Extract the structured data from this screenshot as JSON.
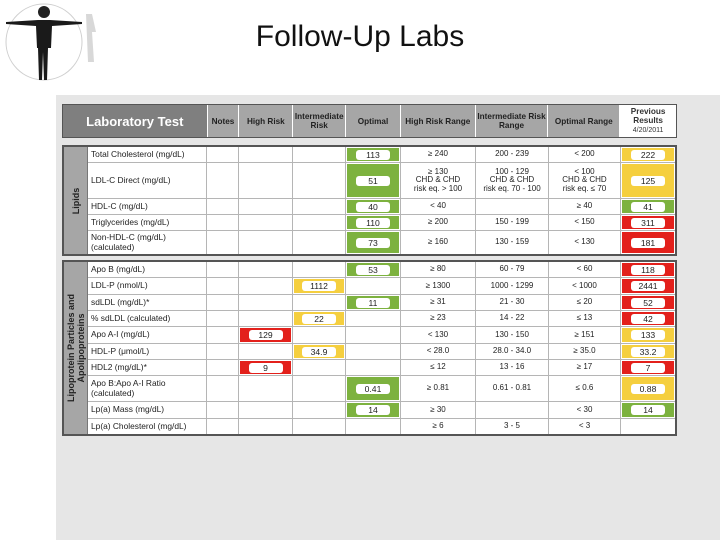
{
  "slide": {
    "title": "Follow-Up Labs"
  },
  "header": {
    "laboratory_test": "Laboratory Test",
    "notes": "Notes",
    "high_risk": "High Risk",
    "intermediate_risk": "Intermediate Risk",
    "optimal": "Optimal",
    "high_risk_range": "High Risk Range",
    "intermediate_risk_range": "Intermediate Risk Range",
    "optimal_range": "Optimal Range",
    "previous_results": "Previous Results",
    "previous_date": "4/20/2011"
  },
  "sections": {
    "lipids": {
      "label": "Lipids",
      "rows": [
        {
          "name": "Total Cholesterol (mg/dL)",
          "high": "",
          "intermediate": "",
          "optimal": "113",
          "high_range": "≥ 240",
          "int_range": "200 - 239",
          "opt_range": "< 200",
          "previous": "222",
          "prev_color": "yellow"
        },
        {
          "name": "LDL-C Direct (mg/dL)",
          "high": "",
          "intermediate": "",
          "optimal": "51",
          "high_range": "≥ 130\nCHD & CHD\nrisk eq. > 100",
          "int_range": "100 - 129\nCHD & CHD\nrisk eq. 70 - 100",
          "opt_range": "< 100\nCHD & CHD\nrisk eq. ≤ 70",
          "previous": "125",
          "prev_color": "yellow"
        },
        {
          "name": "HDL-C (mg/dL)",
          "high": "",
          "intermediate": "",
          "optimal": "40",
          "high_range": "< 40",
          "int_range": "",
          "opt_range": "≥ 40",
          "previous": "41",
          "prev_color": "green"
        },
        {
          "name": "Triglycerides (mg/dL)",
          "high": "",
          "intermediate": "",
          "optimal": "110",
          "high_range": "≥ 200",
          "int_range": "150 - 199",
          "opt_range": "< 150",
          "previous": "311",
          "prev_color": "red"
        },
        {
          "name": "Non-HDL-C (mg/dL)\n(calculated)",
          "high": "",
          "intermediate": "",
          "optimal": "73",
          "high_range": "≥ 160",
          "int_range": "130 - 159",
          "opt_range": "< 130",
          "previous": "181",
          "prev_color": "red"
        }
      ]
    },
    "lipoprotein": {
      "label": "Lipoprotein Particles and Apolipoproteins",
      "rows": [
        {
          "name": "Apo B (mg/dL)",
          "high": "",
          "intermediate": "",
          "optimal": "53",
          "high_range": "≥ 80",
          "int_range": "60 - 79",
          "opt_range": "< 60",
          "previous": "118",
          "prev_color": "red"
        },
        {
          "name": "LDL-P (nmol/L)",
          "high": "",
          "intermediate": "1112",
          "optimal": "",
          "high_range": "≥ 1300",
          "int_range": "1000 - 1299",
          "opt_range": "< 1000",
          "previous": "2441",
          "prev_color": "red"
        },
        {
          "name": "sdLDL (mg/dL)*",
          "high": "",
          "intermediate": "",
          "optimal": "11",
          "high_range": "≥ 31",
          "int_range": "21 - 30",
          "opt_range": "≤ 20",
          "previous": "52",
          "prev_color": "red"
        },
        {
          "name": "% sdLDL (calculated)",
          "high": "",
          "intermediate": "22",
          "optimal": "",
          "high_range": "≥ 23",
          "int_range": "14 - 22",
          "opt_range": "≤ 13",
          "previous": "42",
          "prev_color": "red"
        },
        {
          "name": "Apo A-I (mg/dL)",
          "high": "129",
          "intermediate": "",
          "optimal": "",
          "high_range": "< 130",
          "int_range": "130 - 150",
          "opt_range": "≥ 151",
          "previous": "133",
          "prev_color": "yellow"
        },
        {
          "name": "HDL-P (μmol/L)",
          "high": "",
          "intermediate": "34.9",
          "optimal": "",
          "high_range": "< 28.0",
          "int_range": "28.0 - 34.0",
          "opt_range": "≥ 35.0",
          "previous": "33.2",
          "prev_color": "yellow"
        },
        {
          "name": "HDL2 (mg/dL)*",
          "high": "9",
          "intermediate": "",
          "optimal": "",
          "high_range": "≤ 12",
          "int_range": "13 - 16",
          "opt_range": "≥ 17",
          "previous": "7",
          "prev_color": "red"
        },
        {
          "name": "Apo B:Apo A-I Ratio\n(calculated)",
          "high": "",
          "intermediate": "",
          "optimal": "0.41",
          "high_range": "≥ 0.81",
          "int_range": "0.61 - 0.81",
          "opt_range": "≤ 0.6",
          "previous": "0.88",
          "prev_color": "yellow"
        },
        {
          "name": "Lp(a) Mass (mg/dL)",
          "high": "",
          "intermediate": "",
          "optimal": "14",
          "high_range": "≥ 30",
          "int_range": "",
          "opt_range": "< 30",
          "previous": "14",
          "prev_color": "green"
        },
        {
          "name": "Lp(a) Cholesterol (mg/dL)",
          "high": "",
          "intermediate": "",
          "optimal": "",
          "high_range": "≥ 6",
          "int_range": "3 - 5",
          "opt_range": "< 3",
          "previous": "",
          "prev_color": ""
        }
      ]
    }
  }
}
